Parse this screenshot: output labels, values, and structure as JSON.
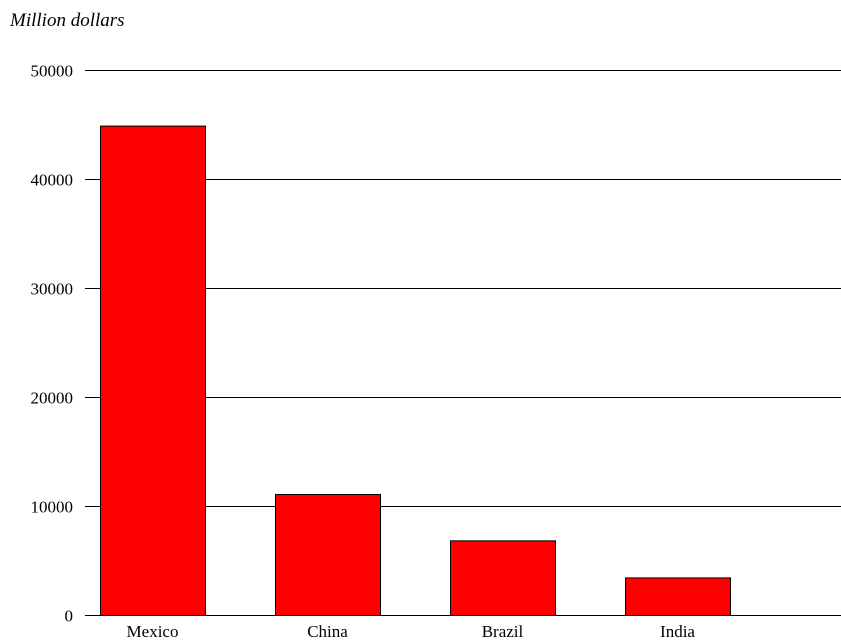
{
  "chart_data": {
    "type": "bar",
    "categories": [
      "Mexico",
      "China",
      "Brazil",
      "India"
    ],
    "values": [
      44900,
      11100,
      6850,
      3450
    ],
    "title": "",
    "xlabel": "",
    "ylabel": "Million dollars",
    "ylim": [
      0,
      50000
    ],
    "yticks": [
      0,
      10000,
      20000,
      30000,
      40000,
      50000
    ],
    "ytick_labels": [
      "0",
      "10000",
      "20000",
      "30000",
      "40000",
      "50000"
    ],
    "grid": true,
    "legend": false,
    "colors": {
      "bar_fill": "#ff0000",
      "bar_stroke": "#000000",
      "grid": "#000000",
      "text": "#000000"
    }
  }
}
